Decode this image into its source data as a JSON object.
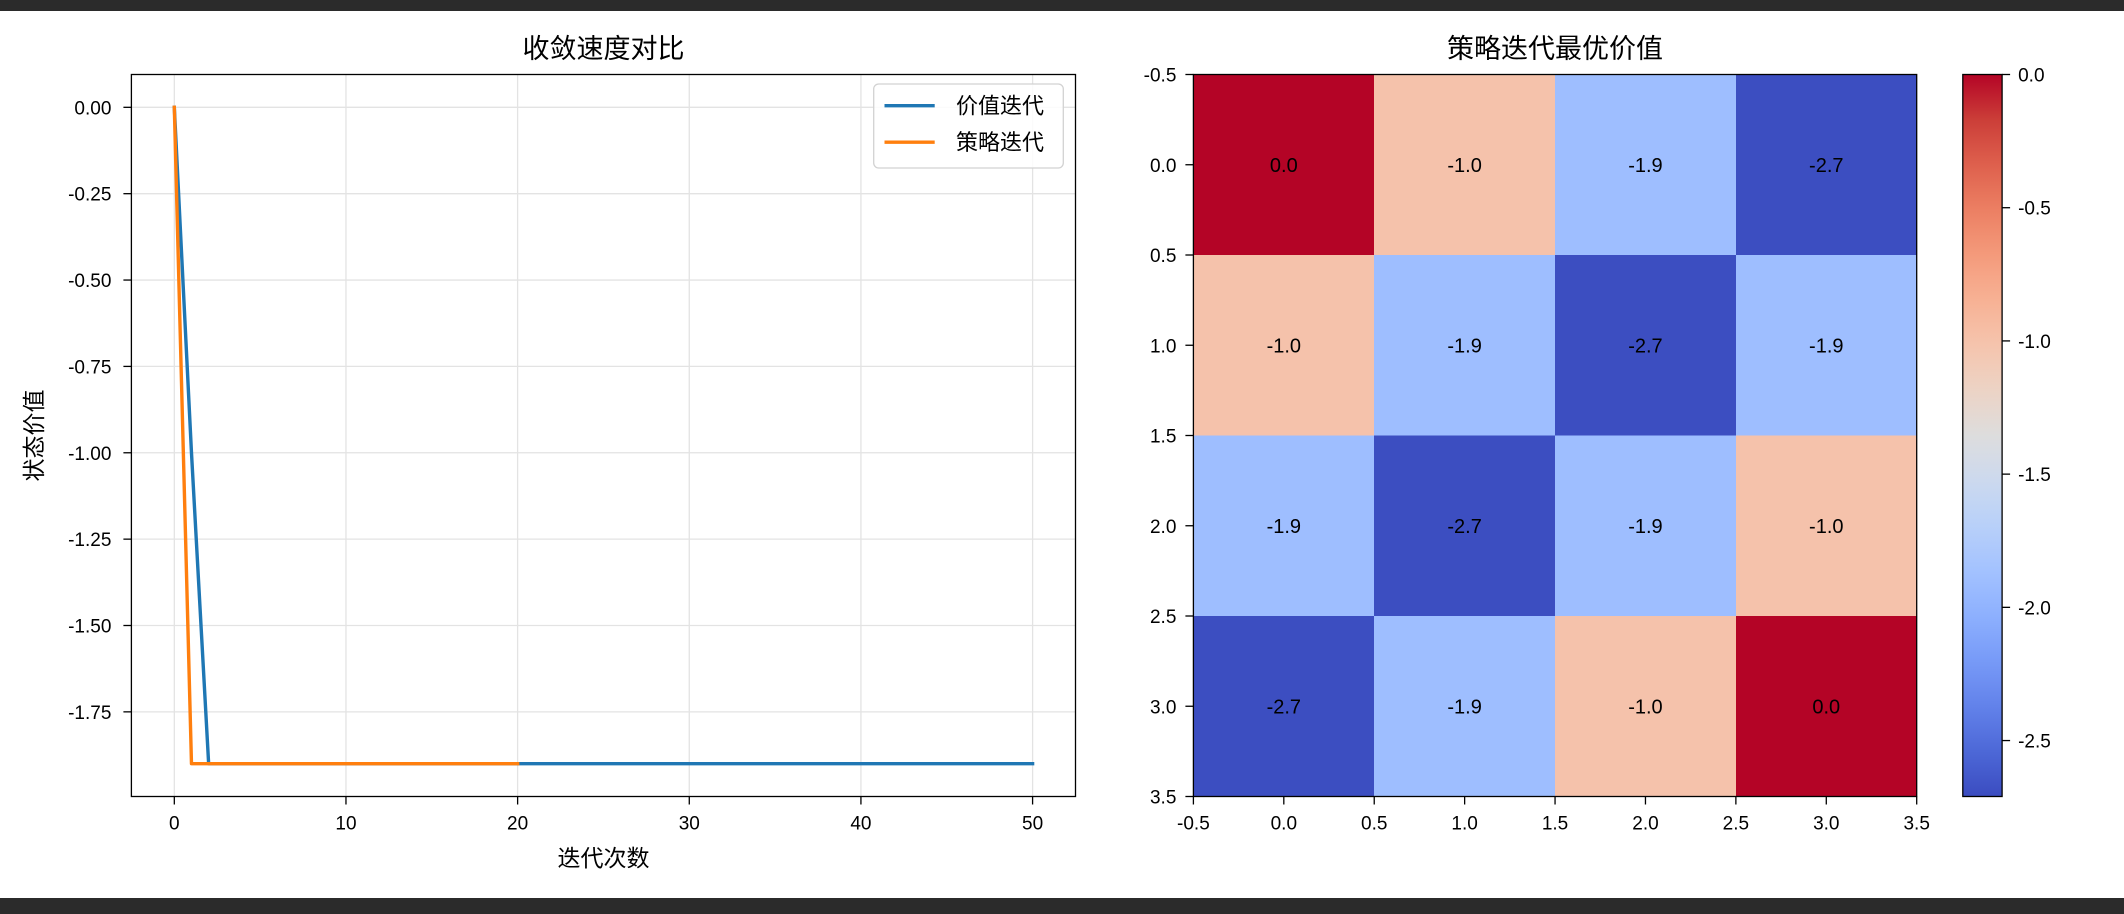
{
  "chart_data": [
    {
      "type": "line",
      "title": "收敛速度对比",
      "xlabel": "迭代次数",
      "ylabel": "状态价值",
      "xlim": [
        -2.5,
        52.5
      ],
      "ylim": [
        -1.995,
        0.095
      ],
      "xticks": {
        "values": [
          0,
          10,
          20,
          30,
          40,
          50
        ],
        "labels": [
          "0",
          "10",
          "20",
          "30",
          "40",
          "50"
        ]
      },
      "yticks": {
        "values": [
          0.0,
          -0.25,
          -0.5,
          -0.75,
          -1.0,
          -1.25,
          -1.5,
          -1.75
        ],
        "labels": [
          "0.00",
          "-0.25",
          "-0.50",
          "-0.75",
          "-1.00",
          "-1.25",
          "-1.50",
          "-1.75"
        ]
      },
      "grid": true,
      "legend": "upper right",
      "series": [
        {
          "name": "价值迭代",
          "color": "#1f77b4",
          "x": [
            0,
            1,
            2,
            3,
            4,
            5,
            6,
            7,
            8,
            9,
            10,
            11,
            12,
            13,
            14,
            15,
            16,
            17,
            18,
            19,
            20,
            21,
            22,
            23,
            24,
            25,
            26,
            27,
            28,
            29,
            30,
            31,
            32,
            33,
            34,
            35,
            36,
            37,
            38,
            39,
            40,
            41,
            42,
            43,
            44,
            45,
            46,
            47,
            48,
            49,
            50
          ],
          "y": [
            0.0,
            -1.0,
            -1.9,
            -1.9,
            -1.9,
            -1.9,
            -1.9,
            -1.9,
            -1.9,
            -1.9,
            -1.9,
            -1.9,
            -1.9,
            -1.9,
            -1.9,
            -1.9,
            -1.9,
            -1.9,
            -1.9,
            -1.9,
            -1.9,
            -1.9,
            -1.9,
            -1.9,
            -1.9,
            -1.9,
            -1.9,
            -1.9,
            -1.9,
            -1.9,
            -1.9,
            -1.9,
            -1.9,
            -1.9,
            -1.9,
            -1.9,
            -1.9,
            -1.9,
            -1.9,
            -1.9,
            -1.9,
            -1.9,
            -1.9,
            -1.9,
            -1.9,
            -1.9,
            -1.9,
            -1.9,
            -1.9,
            -1.9,
            -1.9
          ]
        },
        {
          "name": "策略迭代",
          "color": "#ff7f0e",
          "x": [
            0,
            1,
            2,
            3,
            4,
            5,
            6,
            7,
            8,
            9,
            10,
            11,
            12,
            13,
            14,
            15,
            16,
            17,
            18,
            19,
            20
          ],
          "y": [
            0.0,
            -1.9,
            -1.9,
            -1.9,
            -1.9,
            -1.9,
            -1.9,
            -1.9,
            -1.9,
            -1.9,
            -1.9,
            -1.9,
            -1.9,
            -1.9,
            -1.9,
            -1.9,
            -1.9,
            -1.9,
            -1.9,
            -1.9,
            -1.9
          ]
        }
      ]
    },
    {
      "type": "heatmap",
      "title": "策略迭代最优价值",
      "colormap": "coolwarm",
      "values": [
        [
          0.0,
          -1.0,
          -1.9,
          -2.7
        ],
        [
          -1.0,
          -1.9,
          -2.7,
          -1.9
        ],
        [
          -1.9,
          -2.7,
          -1.9,
          -1.0
        ],
        [
          -2.7,
          -1.9,
          -1.0,
          0.0
        ]
      ],
      "annotations": [
        [
          "0.0",
          "-1.0",
          "-1.9",
          "-2.7"
        ],
        [
          "-1.0",
          "-1.9",
          "-2.7",
          "-1.9"
        ],
        [
          "-1.9",
          "-2.7",
          "-1.9",
          "-1.0"
        ],
        [
          "-2.7",
          "-1.9",
          "-1.0",
          "0.0"
        ]
      ],
      "xlim": [
        -0.5,
        3.5
      ],
      "ylim": [
        3.5,
        -0.5
      ],
      "xticks": {
        "values": [
          -0.5,
          0.0,
          0.5,
          1.0,
          1.5,
          2.0,
          2.5,
          3.0,
          3.5
        ],
        "labels": [
          "-0.5",
          "0.0",
          "0.5",
          "1.0",
          "1.5",
          "2.0",
          "2.5",
          "3.0",
          "3.5"
        ]
      },
      "yticks": {
        "values": [
          -0.5,
          0.0,
          0.5,
          1.0,
          1.5,
          2.0,
          2.5,
          3.0,
          3.5
        ],
        "labels": [
          "-0.5",
          "0.0",
          "0.5",
          "1.0",
          "1.5",
          "2.0",
          "2.5",
          "3.0",
          "3.5"
        ]
      },
      "colorbar": {
        "range": [
          -2.71,
          0.0
        ],
        "ticks": {
          "values": [
            0.0,
            -0.5,
            -1.0,
            -1.5,
            -2.0,
            -2.5
          ],
          "labels": [
            "0.0",
            "-0.5",
            "-1.0",
            "-1.5",
            "-2.0",
            "-2.5"
          ]
        }
      }
    }
  ]
}
